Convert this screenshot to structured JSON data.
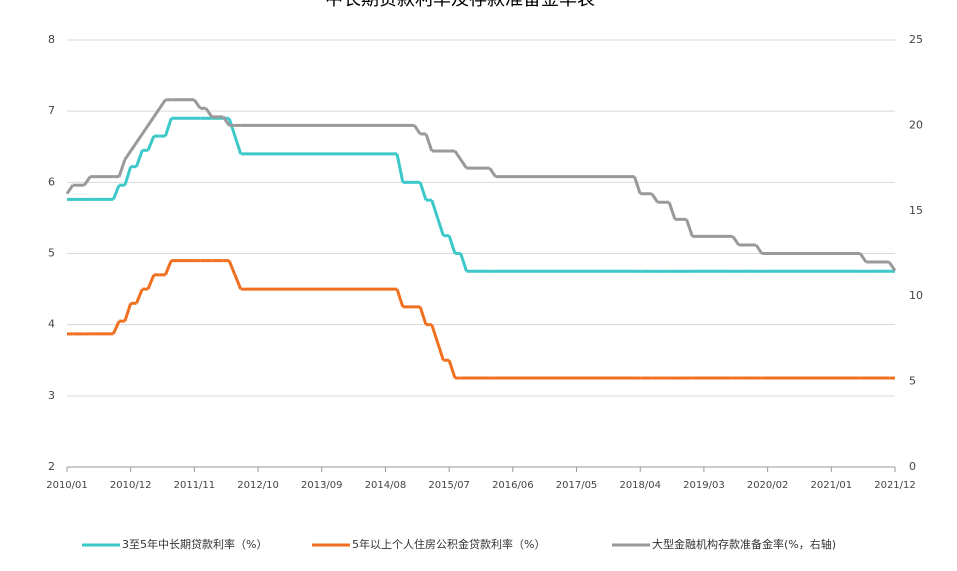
{
  "chart_data": {
    "type": "line",
    "step": "post",
    "title": "中长期贷款利率及存款准备金率表",
    "x": [
      "2010/01",
      "2010/02",
      "2010/05",
      "2010/10",
      "2010/11",
      "2010/12",
      "2011/01",
      "2011/02",
      "2011/03",
      "2011/04",
      "2011/05",
      "2011/06",
      "2011/07",
      "2011/12",
      "2012/02",
      "2012/05",
      "2012/06",
      "2012/07",
      "2014/11",
      "2015/02",
      "2015/03",
      "2015/04",
      "2015/05",
      "2015/06",
      "2015/08",
      "2015/09",
      "2015/10",
      "2016/03",
      "2018/04",
      "2018/07",
      "2018/10",
      "2019/01",
      "2019/09",
      "2020/01",
      "2021/07",
      "2021/12"
    ],
    "series": [
      {
        "name": "3至5年中长期贷款利率（%）",
        "color": "#3cc8c8",
        "values": [
          5.76,
          5.76,
          5.76,
          5.96,
          5.96,
          6.22,
          6.22,
          6.45,
          6.45,
          6.65,
          6.65,
          6.65,
          6.9,
          6.9,
          6.9,
          6.9,
          6.65,
          6.4,
          6.0,
          6.0,
          5.75,
          5.75,
          5.5,
          5.25,
          5.0,
          5.0,
          4.75,
          4.75,
          4.75,
          4.75,
          4.75,
          4.75,
          4.75,
          4.75,
          4.75,
          4.75
        ]
      },
      {
        "name": "5年以上个人住房公积金贷款利率（%）",
        "color": "#f07020",
        "values": [
          3.87,
          3.87,
          3.87,
          4.05,
          4.05,
          4.3,
          4.3,
          4.5,
          4.5,
          4.7,
          4.7,
          4.7,
          4.9,
          4.9,
          4.9,
          4.9,
          4.7,
          4.5,
          4.25,
          4.25,
          4.0,
          4.0,
          3.75,
          3.5,
          3.25,
          3.25,
          3.25,
          3.25,
          3.25,
          3.25,
          3.25,
          3.25,
          3.25,
          3.25,
          3.25,
          3.25
        ]
      },
      {
        "name": "大型金融机构存款准备金率(%，右轴)",
        "color": "#999999",
        "axis": "y2",
        "values": [
          16,
          16.5,
          17,
          17,
          18,
          18.5,
          19,
          19.5,
          20,
          20.5,
          21,
          21.5,
          21.5,
          21,
          20.5,
          20,
          20,
          20,
          20,
          19.5,
          19.5,
          18.5,
          18.5,
          18.5,
          18.5,
          18,
          17.5,
          17,
          16,
          15.5,
          14.5,
          13.5,
          13,
          12.5,
          12,
          11.5
        ]
      }
    ],
    "xlim": [
      "2010/01",
      "2021/12"
    ],
    "xticks": [
      "2010/01",
      "2010/12",
      "2011/11",
      "2012/10",
      "2013/09",
      "2014/08",
      "2015/07",
      "2016/06",
      "2017/05",
      "2018/04",
      "2019/03",
      "2020/02",
      "2021/01",
      "2021/12"
    ],
    "ylim": [
      2,
      8
    ],
    "yticks": [
      2,
      3,
      4,
      5,
      6,
      7,
      8
    ],
    "y2lim": [
      0,
      25
    ],
    "y2ticks": [
      0,
      5,
      10,
      15,
      20,
      25
    ],
    "grid": true,
    "legend": "bottom"
  }
}
